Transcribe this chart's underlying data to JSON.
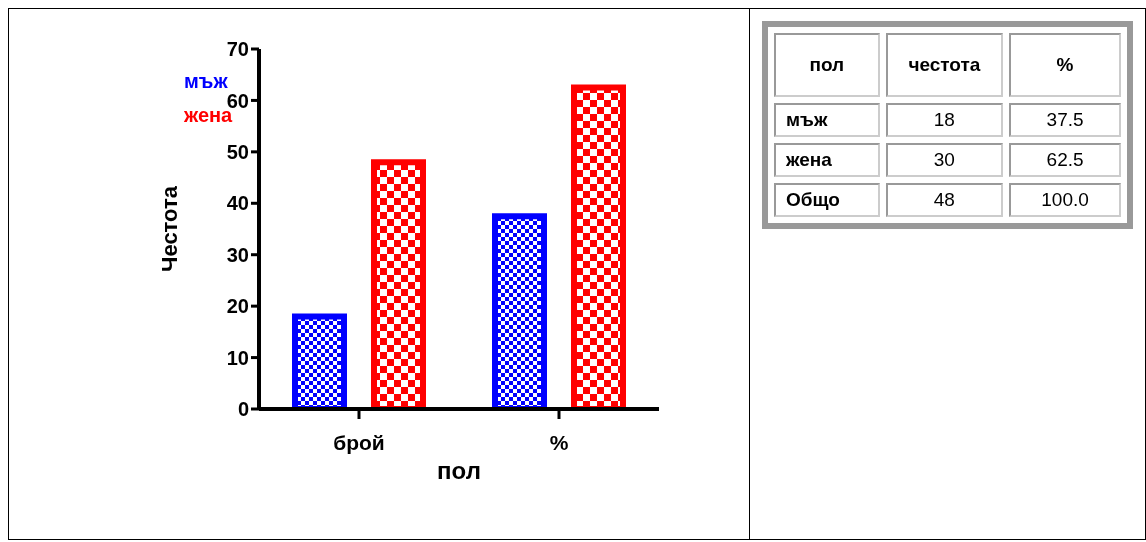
{
  "chart_data": [
    {
      "type": "bar",
      "categories": [
        "брой",
        "%"
      ],
      "series": [
        {
          "name": "мъж",
          "color": "#0000ff",
          "values": [
            18,
            37.5
          ]
        },
        {
          "name": "жена",
          "color": "#ff0000",
          "values": [
            48,
            62.5
          ]
        }
      ],
      "xlabel": "пол",
      "ylabel": "Честота",
      "ylim": [
        0,
        70
      ],
      "yticks": [
        0,
        10,
        20,
        30,
        40,
        50,
        60,
        70
      ],
      "grid": false,
      "legend": "top left"
    },
    {
      "type": "other",
      "xlabel": "пол",
      "categories": [
        "мъж",
        "жена",
        "Общо"
      ],
      "series": [
        {
          "name": "честота",
          "values": [
            18,
            30,
            48
          ],
          "value_labels": [
            "18",
            "30",
            "48"
          ]
        },
        {
          "name": "%",
          "values": [
            37.5,
            62.5,
            100.0
          ],
          "value_labels": [
            "37.5",
            "62.5",
            "100.0"
          ]
        }
      ]
    }
  ]
}
